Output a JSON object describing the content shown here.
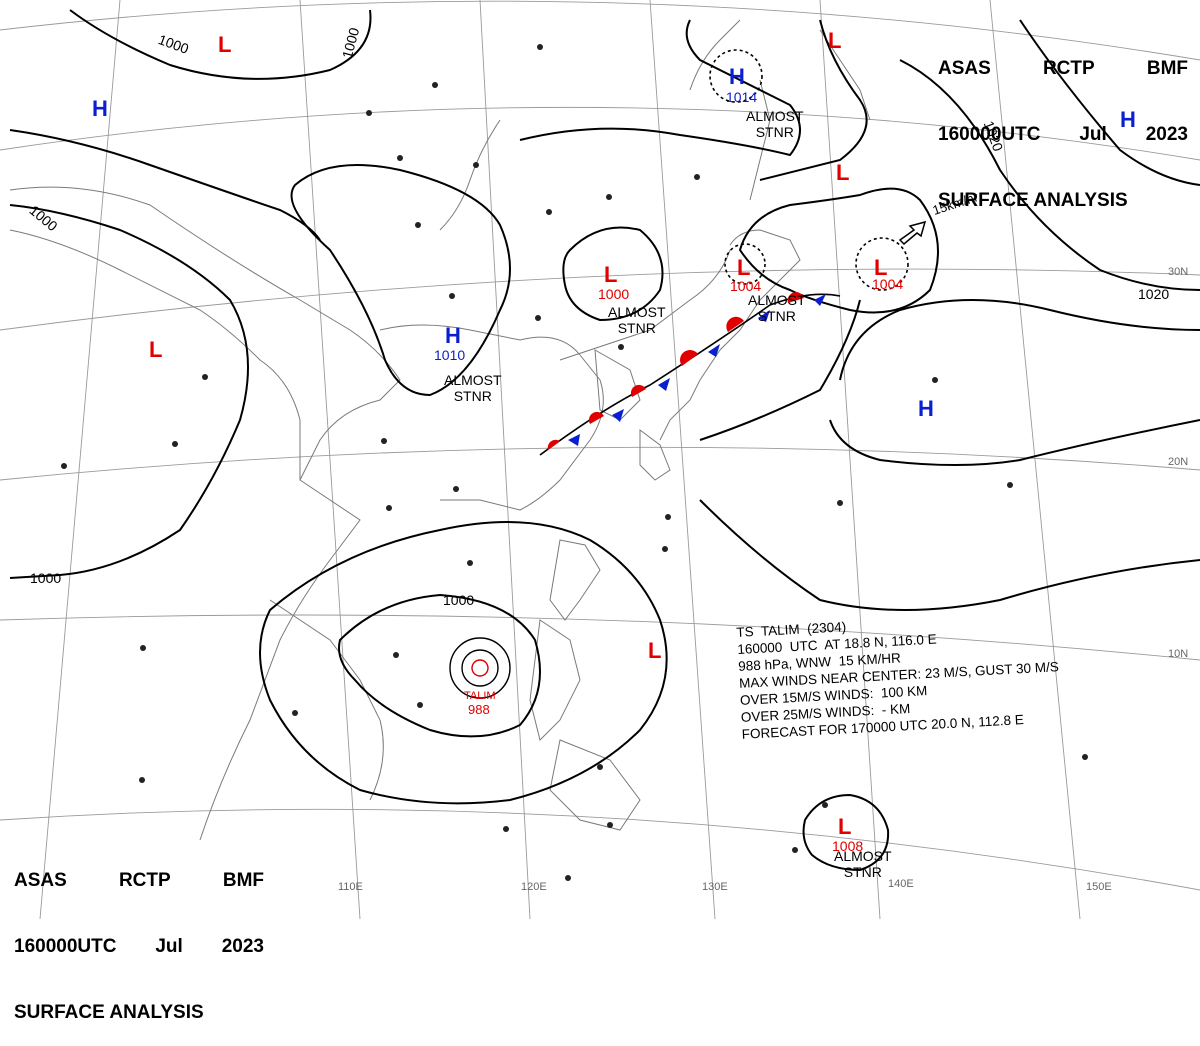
{
  "header": {
    "line1": [
      "ASAS",
      "RCTP",
      "BMF"
    ],
    "line2": [
      "160000UTC",
      "Jul",
      "2023"
    ],
    "line3": "SURFACE ANALYSIS"
  },
  "isobar_labels": [
    "1000",
    "1000",
    "1000",
    "1000",
    "1000",
    "1020",
    "1020"
  ],
  "longitude_labels": [
    "110E",
    "120E",
    "130E",
    "140E",
    "150E"
  ],
  "latitude_labels": [
    "30N",
    "20N",
    "10N"
  ],
  "pressure_systems": [
    {
      "type": "L",
      "value": ""
    },
    {
      "type": "L",
      "value": ""
    },
    {
      "type": "L",
      "value": ""
    },
    {
      "type": "L",
      "value": ""
    },
    {
      "type": "H",
      "value": ""
    },
    {
      "type": "H",
      "value": "1014"
    },
    {
      "type": "H",
      "value": ""
    },
    {
      "type": "H",
      "value": "1010"
    },
    {
      "type": "L",
      "value": "1000"
    },
    {
      "type": "L",
      "value": "1004"
    },
    {
      "type": "L",
      "value": "1004"
    },
    {
      "type": "H",
      "value": ""
    },
    {
      "type": "L",
      "value": ""
    },
    {
      "type": "L",
      "value": "1008"
    }
  ],
  "stnr_labels": {
    "almost": "ALMOST",
    "stnr": "STNR"
  },
  "movement": "15km/hr",
  "typhoon": {
    "name": "TALIM",
    "pressure": "988",
    "line1": "TS  TALIM  (2304)",
    "line2": "160000  UTC  AT 18.8 N, 116.0 E",
    "line3": "988 hPa, WNW  15 KM/HR",
    "line4": "MAX WINDS NEAR CENTER: 23 M/S, GUST 30 M/S",
    "line5": "OVER 15M/S WINDS:  100 KM",
    "line6": "OVER 25M/S WINDS:  - KM",
    "line7": "FORECAST FOR 170000 UTC 20.0 N, 112.8 E"
  },
  "colors": {
    "low": "#e00000",
    "high": "#0a1fd0",
    "isobar": "#000000",
    "coast": "#7a7a7a",
    "grid": "#9a9a9a"
  }
}
